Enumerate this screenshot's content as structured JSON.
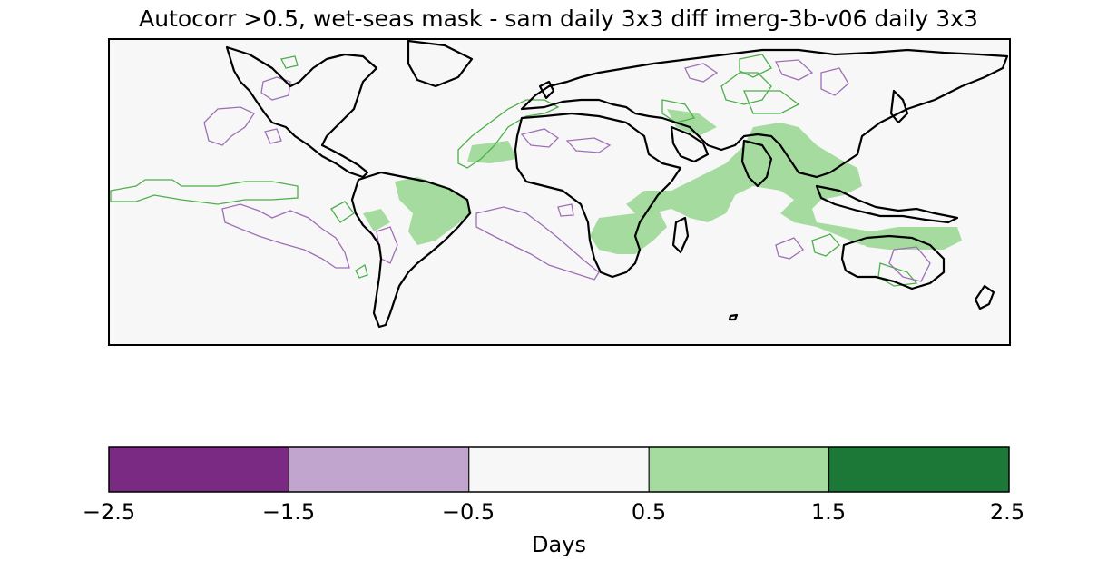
{
  "title": "Autocorr >0.5, wet-seas mask - sam daily 3x3 diff imerg-3b-v06 daily 3x3",
  "colorbar": {
    "label": "Days",
    "ticks": [
      "−2.5",
      "−1.5",
      "−0.5",
      "0.5",
      "1.5",
      "2.5"
    ],
    "bins": [
      {
        "from": -2.5,
        "to": -1.5,
        "color": "#7b2a83"
      },
      {
        "from": -1.5,
        "to": -0.5,
        "color": "#c2a5cf"
      },
      {
        "from": -0.5,
        "to": 0.5,
        "color": "#f7f7f7"
      },
      {
        "from": 0.5,
        "to": 1.5,
        "color": "#a6dba0"
      },
      {
        "from": 1.5,
        "to": 2.5,
        "color": "#1b7837"
      }
    ]
  },
  "map": {
    "background_color": "#f7f7f7",
    "coastline_color": "#000000",
    "positive_color": "#a6dba0",
    "positive_contour_color": "#4daf4a",
    "negative_contour_color": "#9e6fb5"
  }
}
